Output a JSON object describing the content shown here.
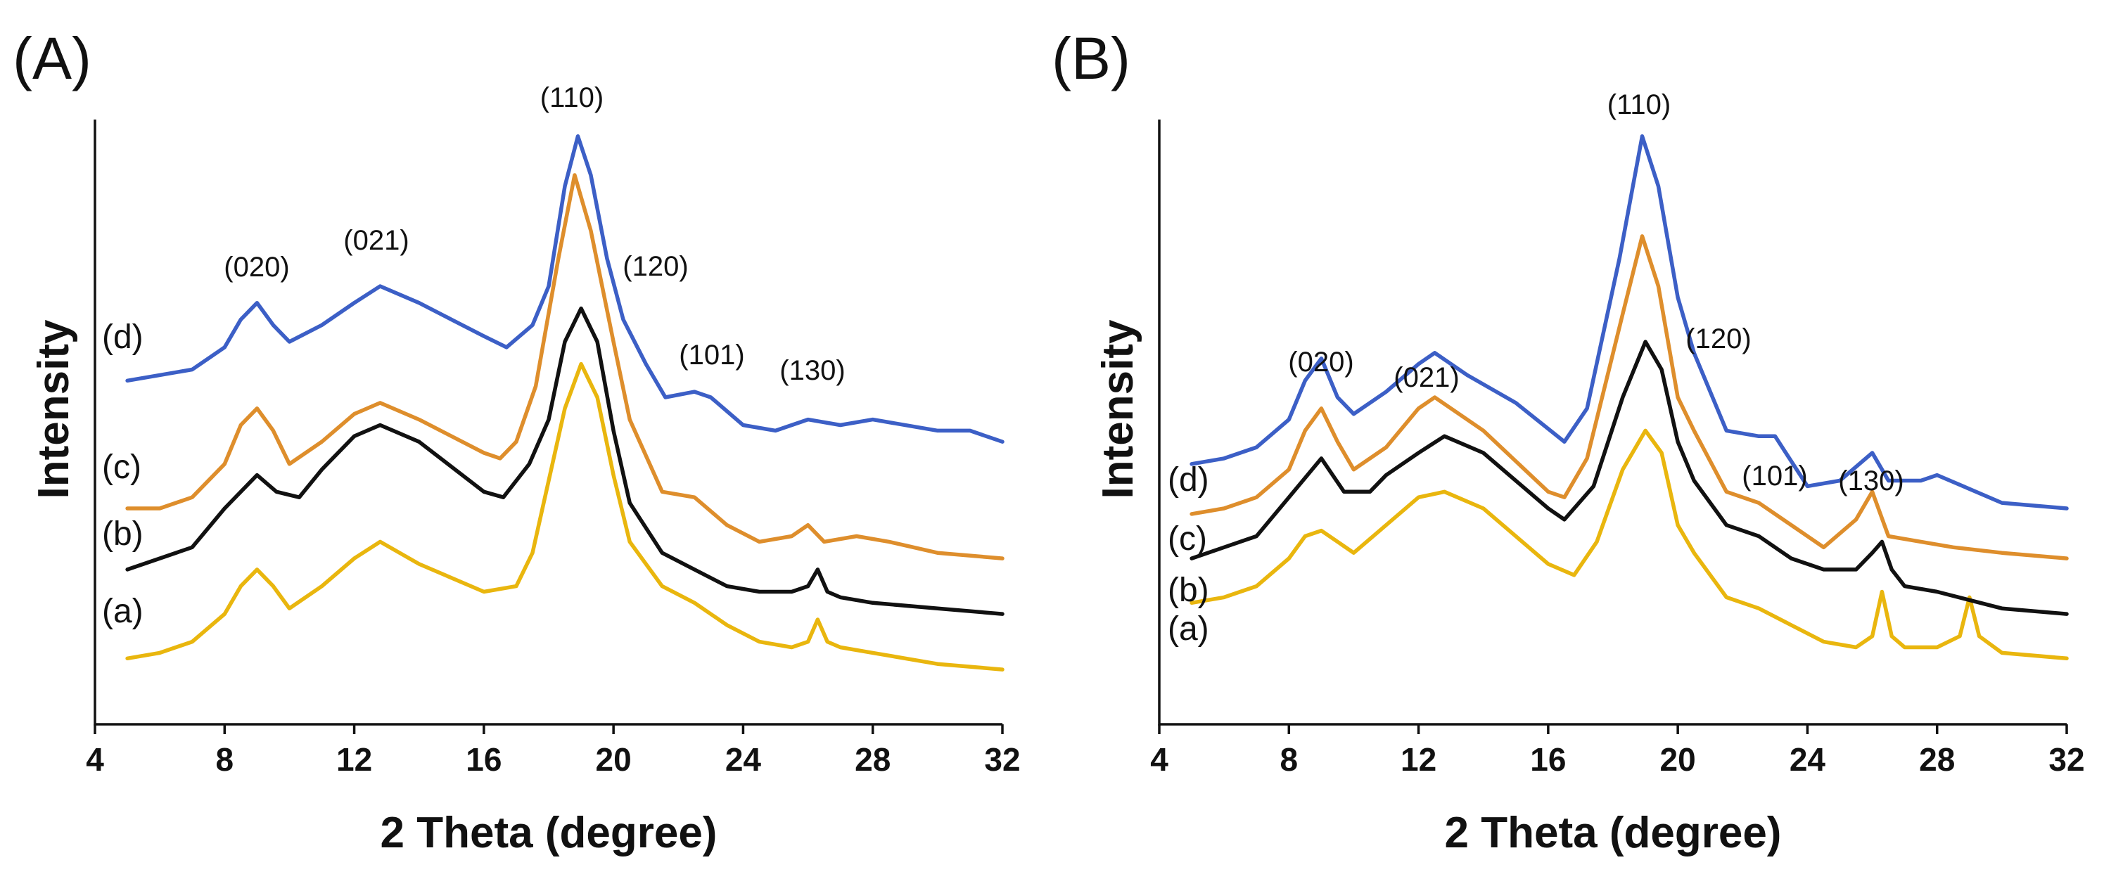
{
  "chart_data": [
    {
      "panel": "(A)",
      "type": "line",
      "xlabel": "2 Theta (degree)",
      "ylabel": "Intensity",
      "xlim": [
        4,
        32
      ],
      "ylim": [
        0,
        100
      ],
      "xticks": [
        4,
        8,
        12,
        16,
        20,
        24,
        28,
        32
      ],
      "grid": false,
      "series": [
        {
          "name": "(a)",
          "color": "#e9b60e",
          "points": [
            [
              5,
              3
            ],
            [
              6,
              4
            ],
            [
              7,
              6
            ],
            [
              8,
              11
            ],
            [
              8.5,
              16
            ],
            [
              9,
              19
            ],
            [
              9.5,
              16
            ],
            [
              10,
              12
            ],
            [
              11,
              16
            ],
            [
              12,
              21
            ],
            [
              12.8,
              24
            ],
            [
              14,
              20
            ],
            [
              16,
              15
            ],
            [
              17,
              16
            ],
            [
              17.5,
              22
            ],
            [
              18,
              35
            ],
            [
              18.5,
              48
            ],
            [
              19,
              56
            ],
            [
              19.5,
              50
            ],
            [
              20,
              36
            ],
            [
              20.5,
              24
            ],
            [
              21.5,
              16
            ],
            [
              22.5,
              13
            ],
            [
              23.5,
              9
            ],
            [
              24.5,
              6
            ],
            [
              25.5,
              5
            ],
            [
              26,
              6
            ],
            [
              26.3,
              10
            ],
            [
              26.6,
              6
            ],
            [
              27,
              5
            ],
            [
              28,
              4
            ],
            [
              30,
              2
            ],
            [
              32,
              1
            ]
          ]
        },
        {
          "name": "(b)",
          "color": "#111111",
          "points": [
            [
              5,
              19
            ],
            [
              6,
              21
            ],
            [
              7,
              23
            ],
            [
              8,
              30
            ],
            [
              9,
              36
            ],
            [
              9.6,
              33
            ],
            [
              10.3,
              32
            ],
            [
              11,
              37
            ],
            [
              12,
              43
            ],
            [
              12.8,
              45
            ],
            [
              14,
              42
            ],
            [
              16,
              33
            ],
            [
              16.6,
              32
            ],
            [
              17.4,
              38
            ],
            [
              18,
              46
            ],
            [
              18.5,
              60
            ],
            [
              19,
              66
            ],
            [
              19.5,
              60
            ],
            [
              20,
              44
            ],
            [
              20.5,
              31
            ],
            [
              21.5,
              22
            ],
            [
              22.5,
              19
            ],
            [
              23.5,
              16
            ],
            [
              24.5,
              15
            ],
            [
              25.5,
              15
            ],
            [
              26,
              16
            ],
            [
              26.3,
              19
            ],
            [
              26.6,
              15
            ],
            [
              27,
              14
            ],
            [
              28,
              13
            ],
            [
              30,
              12
            ],
            [
              32,
              11
            ]
          ]
        },
        {
          "name": "(c)",
          "color": "#de8e2c",
          "points": [
            [
              5,
              30
            ],
            [
              6,
              30
            ],
            [
              7,
              32
            ],
            [
              8,
              38
            ],
            [
              8.5,
              45
            ],
            [
              9,
              48
            ],
            [
              9.5,
              44
            ],
            [
              10,
              38
            ],
            [
              11,
              42
            ],
            [
              12,
              47
            ],
            [
              12.8,
              49
            ],
            [
              14,
              46
            ],
            [
              16,
              40
            ],
            [
              16.5,
              39
            ],
            [
              17,
              42
            ],
            [
              17.6,
              52
            ],
            [
              18.3,
              75
            ],
            [
              18.8,
              90
            ],
            [
              19.3,
              80
            ],
            [
              20,
              60
            ],
            [
              20.5,
              46
            ],
            [
              21.5,
              33
            ],
            [
              22.5,
              32
            ],
            [
              23.5,
              27
            ],
            [
              24.5,
              24
            ],
            [
              25.5,
              25
            ],
            [
              26,
              27
            ],
            [
              26.5,
              24
            ],
            [
              27.5,
              25
            ],
            [
              28.5,
              24
            ],
            [
              30,
              22
            ],
            [
              32,
              21
            ]
          ]
        },
        {
          "name": "(d)",
          "color": "#3c5fc6",
          "points": [
            [
              5,
              53
            ],
            [
              6,
              54
            ],
            [
              7,
              55
            ],
            [
              8,
              59
            ],
            [
              8.5,
              64
            ],
            [
              9,
              67
            ],
            [
              9.5,
              63
            ],
            [
              10,
              60
            ],
            [
              11,
              63
            ],
            [
              12,
              67
            ],
            [
              12.8,
              70
            ],
            [
              14,
              67
            ],
            [
              15,
              64
            ],
            [
              16,
              61
            ],
            [
              16.7,
              59
            ],
            [
              17.5,
              63
            ],
            [
              18,
              70
            ],
            [
              18.5,
              88
            ],
            [
              18.9,
              97
            ],
            [
              19.3,
              90
            ],
            [
              19.8,
              75
            ],
            [
              20.3,
              64
            ],
            [
              21,
              56
            ],
            [
              21.6,
              50
            ],
            [
              22.5,
              51
            ],
            [
              23,
              50
            ],
            [
              24,
              45
            ],
            [
              25,
              44
            ],
            [
              26,
              46
            ],
            [
              27,
              45
            ],
            [
              28,
              46
            ],
            [
              30,
              44
            ],
            [
              31,
              44
            ],
            [
              32,
              42
            ]
          ]
        }
      ],
      "series_labels": [
        "(a)",
        "(b)",
        "(c)",
        "(d)"
      ],
      "annotations": [
        "(020)",
        "(021)",
        "(110)",
        "(120)",
        "(101)",
        "(130)"
      ]
    },
    {
      "panel": "(B)",
      "type": "line",
      "xlabel": "2 Theta (degree)",
      "ylabel": "Intensity",
      "xlim": [
        4,
        32
      ],
      "ylim": [
        0,
        100
      ],
      "xticks": [
        4,
        8,
        12,
        16,
        20,
        24,
        28,
        32
      ],
      "grid": false,
      "series": [
        {
          "name": "(a)",
          "color": "#e9b60e",
          "points": [
            [
              5,
              13
            ],
            [
              6,
              14
            ],
            [
              7,
              16
            ],
            [
              8,
              21
            ],
            [
              8.5,
              25
            ],
            [
              9,
              26
            ],
            [
              9.5,
              24
            ],
            [
              10,
              22
            ],
            [
              11,
              27
            ],
            [
              12,
              32
            ],
            [
              12.8,
              33
            ],
            [
              14,
              30
            ],
            [
              16,
              20
            ],
            [
              16.8,
              18
            ],
            [
              17.5,
              24
            ],
            [
              18.3,
              37
            ],
            [
              19,
              44
            ],
            [
              19.5,
              40
            ],
            [
              20,
              27
            ],
            [
              20.5,
              22
            ],
            [
              21.5,
              14
            ],
            [
              22.5,
              12
            ],
            [
              23.5,
              9
            ],
            [
              24.5,
              6
            ],
            [
              25.5,
              5
            ],
            [
              26,
              7
            ],
            [
              26.3,
              15
            ],
            [
              26.6,
              7
            ],
            [
              27,
              5
            ],
            [
              28,
              5
            ],
            [
              28.7,
              7
            ],
            [
              29,
              14
            ],
            [
              29.3,
              7
            ],
            [
              30,
              4
            ],
            [
              32,
              3
            ]
          ]
        },
        {
          "name": "(b)",
          "color": "#111111",
          "points": [
            [
              5,
              21
            ],
            [
              6,
              23
            ],
            [
              7,
              25
            ],
            [
              8,
              32
            ],
            [
              9,
              39
            ],
            [
              9.7,
              33
            ],
            [
              10.5,
              33
            ],
            [
              11,
              36
            ],
            [
              12,
              40
            ],
            [
              12.8,
              43
            ],
            [
              14,
              40
            ],
            [
              16,
              30
            ],
            [
              16.5,
              28
            ],
            [
              17.4,
              34
            ],
            [
              18.3,
              50
            ],
            [
              19,
              60
            ],
            [
              19.5,
              55
            ],
            [
              20,
              42
            ],
            [
              20.5,
              35
            ],
            [
              21.5,
              27
            ],
            [
              22.5,
              25
            ],
            [
              23.5,
              21
            ],
            [
              24.5,
              19
            ],
            [
              25.5,
              19
            ],
            [
              26,
              22
            ],
            [
              26.3,
              24
            ],
            [
              26.6,
              19
            ],
            [
              27,
              16
            ],
            [
              28,
              15
            ],
            [
              30,
              12
            ],
            [
              32,
              11
            ]
          ]
        },
        {
          "name": "(c)",
          "color": "#de8e2c",
          "points": [
            [
              5,
              29
            ],
            [
              6,
              30
            ],
            [
              7,
              32
            ],
            [
              8,
              37
            ],
            [
              8.5,
              44
            ],
            [
              9,
              48
            ],
            [
              9.5,
              42
            ],
            [
              10,
              37
            ],
            [
              11,
              41
            ],
            [
              12,
              48
            ],
            [
              12.5,
              50
            ],
            [
              14,
              44
            ],
            [
              16,
              33
            ],
            [
              16.5,
              32
            ],
            [
              17.2,
              39
            ],
            [
              18.3,
              65
            ],
            [
              18.9,
              79
            ],
            [
              19.4,
              70
            ],
            [
              20,
              50
            ],
            [
              20.5,
              44
            ],
            [
              21.5,
              33
            ],
            [
              22.5,
              31
            ],
            [
              23.5,
              27
            ],
            [
              24.5,
              23
            ],
            [
              25.5,
              28
            ],
            [
              26,
              33
            ],
            [
              26.5,
              25
            ],
            [
              27.5,
              24
            ],
            [
              28.5,
              23
            ],
            [
              30,
              22
            ],
            [
              32,
              21
            ]
          ]
        },
        {
          "name": "(d)",
          "color": "#3c5fc6",
          "points": [
            [
              5,
              38
            ],
            [
              6,
              39
            ],
            [
              7,
              41
            ],
            [
              8,
              46
            ],
            [
              8.5,
              53
            ],
            [
              9,
              57
            ],
            [
              9.5,
              50
            ],
            [
              10,
              47
            ],
            [
              11,
              51
            ],
            [
              12,
              56
            ],
            [
              12.5,
              58
            ],
            [
              13.5,
              54
            ],
            [
              15,
              49
            ],
            [
              16.5,
              42
            ],
            [
              17.2,
              48
            ],
            [
              18.2,
              75
            ],
            [
              18.9,
              97
            ],
            [
              19.4,
              88
            ],
            [
              20,
              68
            ],
            [
              20.5,
              58
            ],
            [
              21.5,
              44
            ],
            [
              22.5,
              43
            ],
            [
              23,
              43
            ],
            [
              24,
              34
            ],
            [
              25,
              35
            ],
            [
              26,
              40
            ],
            [
              26.5,
              35
            ],
            [
              27.5,
              35
            ],
            [
              28,
              36
            ],
            [
              30,
              31
            ],
            [
              32,
              30
            ]
          ]
        }
      ],
      "series_labels": [
        "(a)",
        "(b)",
        "(c)",
        "(d)"
      ],
      "annotations": [
        "(020)",
        "(021)",
        "(110)",
        "(120)",
        "(101)",
        "(130)"
      ]
    }
  ]
}
